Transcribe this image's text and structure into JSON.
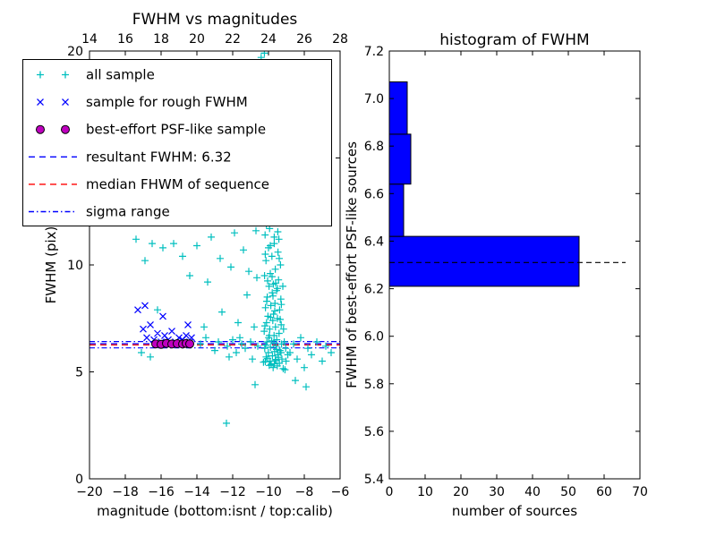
{
  "window": {
    "background": "#ffffff"
  },
  "chart_data": [
    {
      "type": "scatter",
      "title": "FWHM vs magnitudes",
      "xlabel": "magnitude (bottom:isnt / top:calib)",
      "ylabel": "FWHM (pix)",
      "xlim": [
        -20,
        -6
      ],
      "xlim_top": [
        14,
        28
      ],
      "ylim": [
        0,
        20
      ],
      "x_ticks_bottom": [
        -20,
        -18,
        -16,
        -14,
        -12,
        -10,
        -8,
        -6
      ],
      "x_ticks_top": [
        14,
        16,
        18,
        20,
        22,
        24,
        26,
        28
      ],
      "y_ticks": [
        0,
        5,
        10,
        15,
        20
      ],
      "series": [
        {
          "id": "all-sample",
          "name": "all sample",
          "marker": "plus",
          "color": "#00bfbf",
          "points": [
            [
              -10.23,
              19.9
            ],
            [
              -10.41,
              19.7
            ],
            [
              -9.92,
              18.3
            ],
            [
              -10.08,
              17.2
            ],
            [
              -9.77,
              16.1
            ],
            [
              -10.02,
              15.9
            ],
            [
              -9.63,
              15.2
            ],
            [
              -10.31,
              14.8
            ],
            [
              -9.88,
              14.2
            ],
            [
              -9.71,
              13.8
            ],
            [
              -10.12,
              13.4
            ],
            [
              -9.52,
              13.0
            ],
            [
              -9.83,
              12.7
            ],
            [
              -10.04,
              12.3
            ],
            [
              -9.58,
              12.0
            ],
            [
              -9.94,
              11.7
            ],
            [
              -10.19,
              11.4
            ],
            [
              -9.42,
              11.2
            ],
            [
              -9.68,
              11.0
            ],
            [
              -10.0,
              10.8
            ],
            [
              -9.47,
              10.6
            ],
            [
              -9.81,
              10.4
            ],
            [
              -10.14,
              10.2
            ],
            [
              -9.33,
              10.0
            ],
            [
              -9.62,
              9.8
            ],
            [
              -9.9,
              9.6
            ],
            [
              -10.22,
              9.5
            ],
            [
              -9.44,
              9.3
            ],
            [
              -9.73,
              9.1
            ],
            [
              -9.97,
              9.0
            ],
            [
              -9.55,
              8.8
            ],
            [
              -9.79,
              8.7
            ],
            [
              -10.07,
              8.5
            ],
            [
              -9.31,
              8.4
            ],
            [
              -9.64,
              8.2
            ],
            [
              -9.87,
              8.1
            ],
            [
              -10.17,
              8.0
            ],
            [
              -9.38,
              7.9
            ],
            [
              -9.72,
              7.7
            ],
            [
              -10.03,
              7.6
            ],
            [
              -9.5,
              7.5
            ],
            [
              -9.76,
              7.4
            ],
            [
              -10.11,
              7.3
            ],
            [
              -9.29,
              7.2
            ],
            [
              -9.61,
              7.1
            ],
            [
              -9.93,
              7.0
            ],
            [
              -10.24,
              6.9
            ],
            [
              -9.41,
              6.8
            ],
            [
              -9.69,
              6.7
            ],
            [
              -9.99,
              6.6
            ],
            [
              -9.54,
              6.5
            ],
            [
              -9.82,
              6.45
            ],
            [
              -10.09,
              6.4
            ],
            [
              -9.27,
              6.3
            ],
            [
              -9.57,
              6.2
            ],
            [
              -9.89,
              6.15
            ],
            [
              -10.21,
              6.1
            ],
            [
              -9.36,
              6.0
            ],
            [
              -9.66,
              5.95
            ],
            [
              -10.01,
              5.9
            ],
            [
              -9.48,
              5.8
            ],
            [
              -9.78,
              5.75
            ],
            [
              -10.13,
              5.7
            ],
            [
              -9.25,
              5.6
            ],
            [
              -9.59,
              5.58
            ],
            [
              -9.91,
              5.5
            ],
            [
              -10.18,
              5.48
            ],
            [
              -9.39,
              5.4
            ],
            [
              -9.67,
              5.38
            ],
            [
              -9.96,
              5.3
            ],
            [
              -9.51,
              5.28
            ],
            [
              -9.74,
              5.2
            ],
            [
              -9.18,
              5.15
            ],
            [
              -9.08,
              5.1
            ],
            [
              -9.02,
              5.5
            ],
            [
              -9.12,
              6.4
            ],
            [
              -9.16,
              7.0
            ],
            [
              -9.04,
              6.1
            ],
            [
              -8.92,
              5.8
            ],
            [
              -9.2,
              9.0
            ],
            [
              -10.28,
              5.45
            ],
            [
              -10.05,
              5.62
            ],
            [
              -9.85,
              5.35
            ],
            [
              -9.62,
              5.52
            ],
            [
              -9.45,
              5.68
            ],
            [
              -9.3,
              5.9
            ],
            [
              -10.15,
              6.25
            ],
            [
              -9.95,
              6.7
            ],
            [
              -9.7,
              6.35
            ],
            [
              -9.55,
              6.05
            ],
            [
              -10.2,
              7.15
            ],
            [
              -9.88,
              7.55
            ],
            [
              -9.65,
              7.85
            ],
            [
              -9.35,
              7.45
            ],
            [
              -10.1,
              8.3
            ],
            [
              -9.75,
              8.55
            ],
            [
              -9.5,
              8.9
            ],
            [
              -9.28,
              8.15
            ],
            [
              -10.05,
              9.25
            ],
            [
              -9.8,
              9.45
            ],
            [
              -9.6,
              9.15
            ],
            [
              -9.4,
              10.3
            ],
            [
              -10.18,
              10.5
            ],
            [
              -9.9,
              10.9
            ],
            [
              -9.68,
              11.3
            ],
            [
              -9.48,
              11.55
            ],
            [
              -10.12,
              11.9
            ],
            [
              -9.86,
              12.15
            ],
            [
              -9.58,
              12.5
            ],
            [
              -10.3,
              12.9
            ],
            [
              -9.75,
              13.2
            ],
            [
              -9.95,
              13.6
            ],
            [
              -10.25,
              14.4
            ],
            [
              -9.85,
              14.9
            ],
            [
              -9.65,
              15.6
            ],
            [
              -10.15,
              16.5
            ],
            [
              -9.9,
              17.6
            ],
            [
              -10.35,
              18.8
            ],
            [
              -9.72,
              19.3
            ],
            [
              -10.45,
              13.1
            ],
            [
              -13.8,
              6.3
            ],
            [
              -13.5,
              6.6
            ],
            [
              -13.2,
              11.3
            ],
            [
              -13.0,
              6.0
            ],
            [
              -12.8,
              6.4
            ],
            [
              -12.6,
              7.8
            ],
            [
              -12.35,
              2.6
            ],
            [
              -12.3,
              6.2
            ],
            [
              -12.1,
              9.9
            ],
            [
              -12.0,
              6.5
            ],
            [
              -11.8,
              5.9
            ],
            [
              -11.7,
              7.3
            ],
            [
              -11.5,
              6.3
            ],
            [
              -11.4,
              10.7
            ],
            [
              -11.3,
              6.1
            ],
            [
              -11.2,
              8.6
            ],
            [
              -11.0,
              6.4
            ],
            [
              -10.9,
              5.6
            ],
            [
              -10.8,
              7.1
            ],
            [
              -10.7,
              11.6
            ],
            [
              -10.6,
              6.2
            ],
            [
              -11.9,
              11.5
            ],
            [
              -12.7,
              10.3
            ],
            [
              -13.4,
              9.2
            ],
            [
              -11.1,
              9.7
            ],
            [
              -10.75,
              4.4
            ],
            [
              -11.6,
              6.6
            ],
            [
              -12.2,
              5.7
            ],
            [
              -13.6,
              7.1
            ],
            [
              -10.65,
              9.4
            ],
            [
              -17.4,
              11.2
            ],
            [
              -16.9,
              10.2
            ],
            [
              -16.5,
              11.0
            ],
            [
              -16.2,
              7.9
            ],
            [
              -15.9,
              10.8
            ],
            [
              -15.3,
              11.0
            ],
            [
              -14.8,
              10.4
            ],
            [
              -14.4,
              9.5
            ],
            [
              -14.0,
              10.9
            ],
            [
              -17.1,
              5.9
            ],
            [
              -16.6,
              5.7
            ],
            [
              -8.8,
              5.9
            ],
            [
              -8.6,
              6.3
            ],
            [
              -8.4,
              5.6
            ],
            [
              -8.2,
              6.6
            ],
            [
              -8.0,
              5.2
            ],
            [
              -7.8,
              6.1
            ],
            [
              -7.6,
              5.8
            ],
            [
              -7.3,
              6.4
            ],
            [
              -7.0,
              5.5
            ],
            [
              -6.8,
              6.2
            ],
            [
              -6.5,
              5.9
            ],
            [
              -8.5,
              4.6
            ],
            [
              -7.9,
              4.3
            ]
          ]
        },
        {
          "id": "rough-fwhm",
          "name": "sample for rough FWHM",
          "marker": "x",
          "color": "#0000ff",
          "points": [
            [
              -17.3,
              7.9
            ],
            [
              -17.0,
              7.0
            ],
            [
              -16.8,
              6.6
            ],
            [
              -16.6,
              7.2
            ],
            [
              -16.4,
              6.5
            ],
            [
              -16.2,
              6.8
            ],
            [
              -16.0,
              6.4
            ],
            [
              -15.8,
              6.7
            ],
            [
              -15.6,
              6.5
            ],
            [
              -15.4,
              6.9
            ],
            [
              -15.2,
              6.4
            ],
            [
              -15.0,
              6.6
            ],
            [
              -14.8,
              6.5
            ],
            [
              -14.6,
              6.7
            ],
            [
              -14.4,
              6.4
            ],
            [
              -14.3,
              6.6
            ],
            [
              -16.9,
              8.1
            ],
            [
              -15.9,
              7.6
            ],
            [
              -14.5,
              7.2
            ],
            [
              -16.1,
              6.3
            ]
          ]
        },
        {
          "id": "psf-like",
          "name": "best-effort PSF-like sample",
          "marker": "circle",
          "color": "#bf00bf",
          "edge": "#000000",
          "points": [
            [
              -16.3,
              6.31
            ],
            [
              -16.0,
              6.29
            ],
            [
              -15.7,
              6.33
            ],
            [
              -15.4,
              6.3
            ],
            [
              -15.1,
              6.32
            ],
            [
              -14.8,
              6.3
            ],
            [
              -14.6,
              6.33
            ],
            [
              -14.4,
              6.31
            ]
          ]
        }
      ],
      "lines": [
        {
          "name": "resultant FWHM: 6.32",
          "y": 6.32,
          "color": "#0000ff",
          "style": "dashed"
        },
        {
          "name": "median FHWM of sequence",
          "y": 6.26,
          "color": "#ff0000",
          "style": "dashed"
        },
        {
          "name": "sigma range",
          "y": [
            6.12,
            6.42
          ],
          "color": "#0000ff",
          "style": "dashdot"
        }
      ],
      "legend": [
        {
          "label": "all sample",
          "type": "marker",
          "marker": "plus",
          "color": "#00bfbf"
        },
        {
          "label": "sample for rough FWHM",
          "type": "marker",
          "marker": "x",
          "color": "#0000ff"
        },
        {
          "label": "best-effort PSF-like sample",
          "type": "marker",
          "marker": "circle",
          "color": "#bf00bf",
          "edge": "#000000"
        },
        {
          "label": "resultant FWHM: 6.32",
          "type": "line",
          "style": "dashed",
          "color": "#0000ff"
        },
        {
          "label": "median FHWM of sequence",
          "type": "line",
          "style": "dashed",
          "color": "#ff0000"
        },
        {
          "label": "sigma range",
          "type": "line",
          "style": "dashdot",
          "color": "#0000ff"
        }
      ]
    },
    {
      "type": "bar",
      "orientation": "horizontal",
      "title": "histogram of FWHM",
      "xlabel": "number of sources",
      "ylabel": "FWHM of best-effort PSF-like sources",
      "xlim": [
        0,
        70
      ],
      "ylim": [
        5.4,
        7.2
      ],
      "x_ticks": [
        0,
        10,
        20,
        30,
        40,
        50,
        60,
        70
      ],
      "y_ticks": [
        5.4,
        5.6,
        5.8,
        6.0,
        6.2,
        6.4,
        6.6,
        6.8,
        7.0,
        7.2
      ],
      "bar_color": "#0000ff",
      "bins": [
        {
          "from": 6.21,
          "to": 6.42,
          "count": 53
        },
        {
          "from": 6.42,
          "to": 6.64,
          "count": 4
        },
        {
          "from": 6.64,
          "to": 6.85,
          "count": 6
        },
        {
          "from": 6.85,
          "to": 7.07,
          "count": 5
        }
      ],
      "marker_line": {
        "y": 6.31,
        "x_start": 0,
        "x_end": 66,
        "color": "#000000",
        "style": "dashed"
      }
    }
  ]
}
